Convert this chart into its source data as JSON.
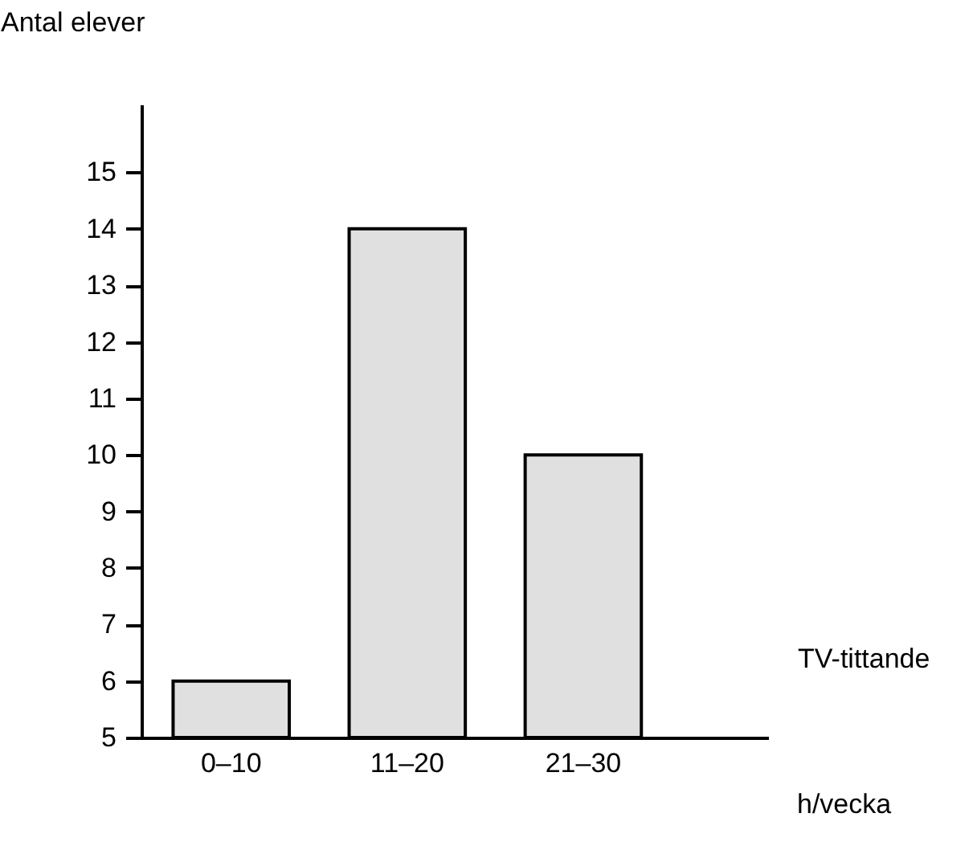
{
  "chart_data": {
    "type": "bar",
    "ylabel": "Antal elever",
    "xlabel": "TV-tittande",
    "annotations": [
      "h/vecka"
    ],
    "categories": [
      "0–10",
      "11–20",
      "21–30"
    ],
    "values": [
      6,
      14,
      10
    ],
    "color": "#e0e0e0",
    "ylim": [
      5,
      16.2
    ],
    "yticks": [
      5,
      6,
      7,
      8,
      9,
      10,
      11,
      12,
      13,
      14,
      15
    ],
    "grid": false
  }
}
